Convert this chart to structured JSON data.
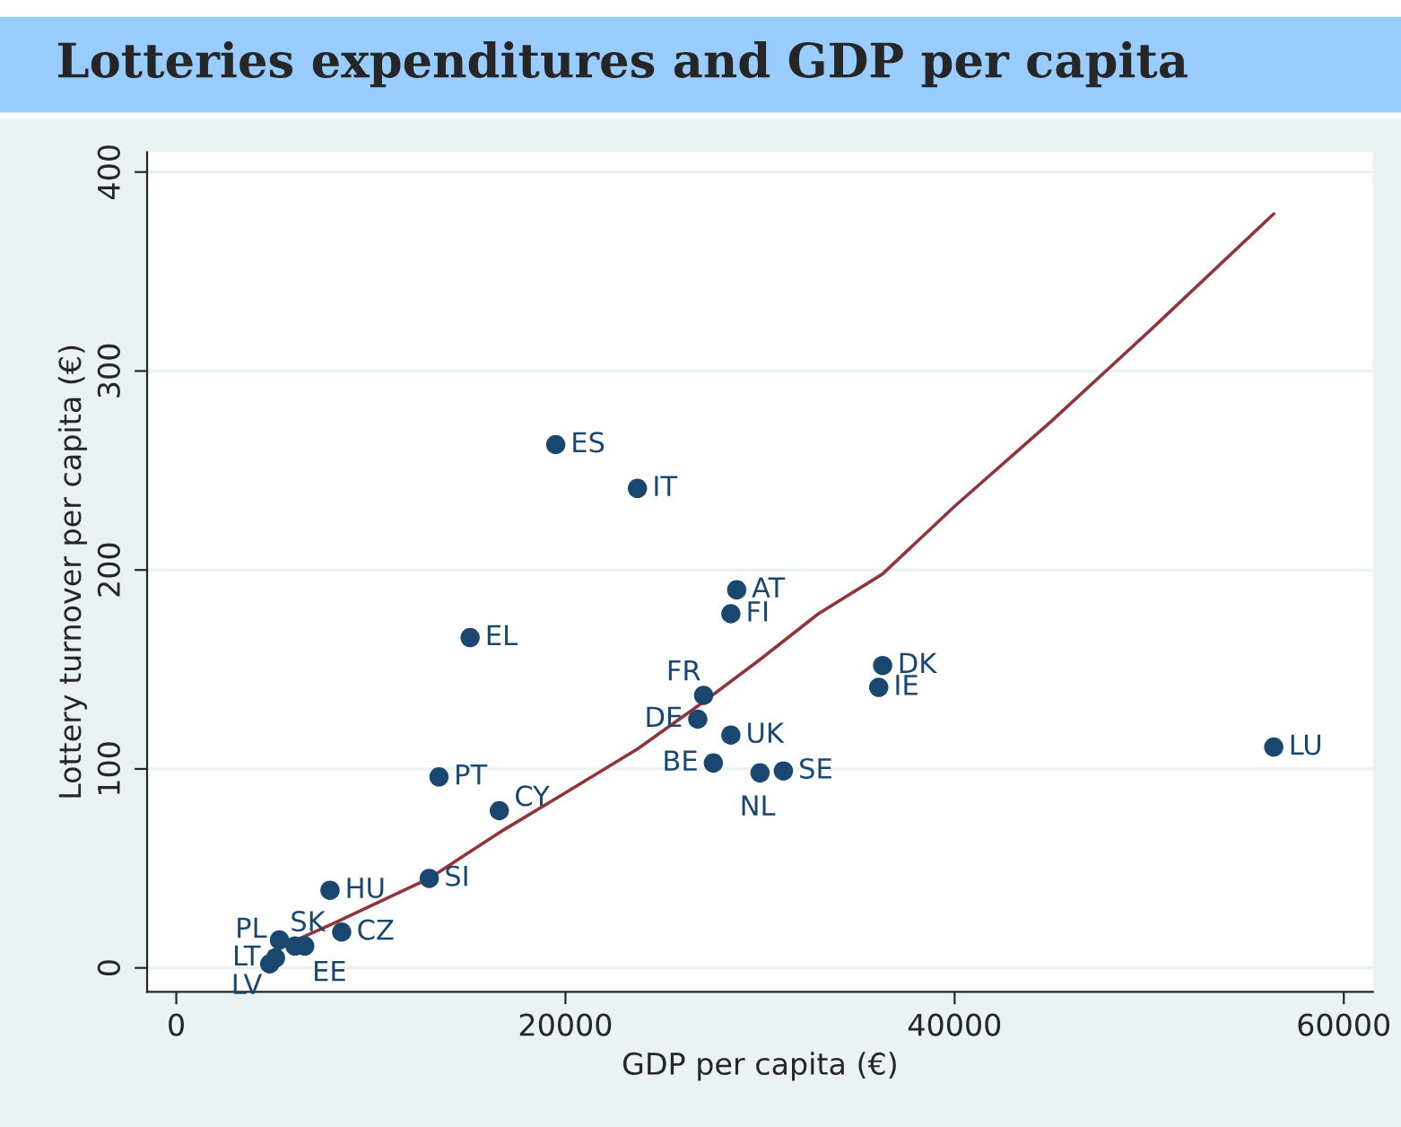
{
  "chart_data": {
    "type": "scatter",
    "title": "Lotteries expenditures and GDP per capita",
    "xlabel": "GDP per capita (€)",
    "ylabel": "Lottery turnover per capita (€)",
    "xlim": [
      -1500,
      61500
    ],
    "ylim": [
      -12,
      410
    ],
    "xticks": [
      0,
      20000,
      40000,
      60000
    ],
    "yticks": [
      0,
      100,
      200,
      300,
      400
    ],
    "grid": "y",
    "legend": false,
    "series": [
      {
        "marker": "circle",
        "color": "#1a476f",
        "x": [
          19500,
          23700,
          28800,
          28500,
          15100,
          27100,
          26800,
          28500,
          27600,
          30000,
          31200,
          36300,
          36100,
          56400,
          13500,
          16600,
          13000,
          7900,
          8500,
          5300,
          6100,
          6600,
          5100,
          4800
        ],
        "values": [
          263,
          241,
          190,
          178,
          166,
          137,
          125,
          117,
          103,
          98,
          99,
          152,
          141,
          111,
          96,
          79,
          45,
          39,
          18,
          14,
          11,
          11,
          5,
          2
        ]
      },
      {
        "type": "line",
        "color": "#90353b",
        "x": [
          4800,
          8000,
          13000,
          16600,
          20000,
          23700,
          27000,
          30000,
          33000,
          36300,
          40000,
          45000,
          50000,
          56400
        ],
        "values": [
          8,
          22,
          45,
          68,
          88,
          110,
          133,
          155,
          178,
          198,
          232,
          275,
          320,
          379
        ]
      }
    ],
    "annotations": [
      {
        "text": "ES",
        "x": 19500,
        "y": 263
      },
      {
        "text": "IT",
        "x": 23700,
        "y": 241
      },
      {
        "text": "AT",
        "x": 28800,
        "y": 190
      },
      {
        "text": "FI",
        "x": 28500,
        "y": 178
      },
      {
        "text": "EL",
        "x": 15100,
        "y": 166
      },
      {
        "text": "FR",
        "x": 27100,
        "y": 137
      },
      {
        "text": "DE",
        "x": 26800,
        "y": 125
      },
      {
        "text": "UK",
        "x": 28500,
        "y": 117
      },
      {
        "text": "BE",
        "x": 27600,
        "y": 103
      },
      {
        "text": "NL",
        "x": 30000,
        "y": 98
      },
      {
        "text": "SE",
        "x": 31200,
        "y": 99
      },
      {
        "text": "DK",
        "x": 36300,
        "y": 152
      },
      {
        "text": "IE",
        "x": 36100,
        "y": 141
      },
      {
        "text": "LU",
        "x": 56400,
        "y": 111
      },
      {
        "text": "PT",
        "x": 13500,
        "y": 96
      },
      {
        "text": "CY",
        "x": 16600,
        "y": 79
      },
      {
        "text": "SI",
        "x": 13000,
        "y": 45
      },
      {
        "text": "HU",
        "x": 7900,
        "y": 39
      },
      {
        "text": "CZ",
        "x": 8500,
        "y": 18
      },
      {
        "text": "PL",
        "x": 5300,
        "y": 14
      },
      {
        "text": "SK",
        "x": 6100,
        "y": 11
      },
      {
        "text": "EE",
        "x": 6600,
        "y": 11
      },
      {
        "text": "LT",
        "x": 5100,
        "y": 5
      },
      {
        "text": "LV",
        "x": 4800,
        "y": 2
      }
    ]
  }
}
